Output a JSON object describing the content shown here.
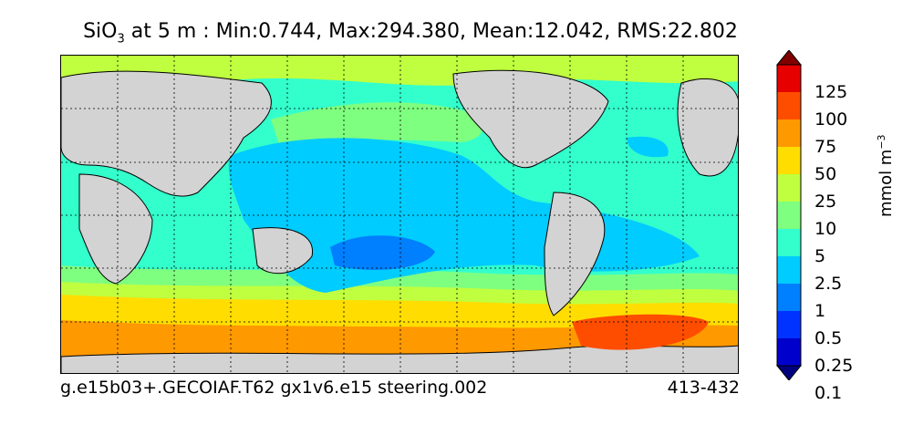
{
  "title": {
    "species": "SiO",
    "species_sub": "3",
    "rest": " at 5 m : Min:0.744, Max:294.380, Mean:12.042, RMS:22.802"
  },
  "footer": {
    "case": "g.e15b03+.GECOIAF.T62 gx1v6.e15 steering.002",
    "years": "413-432"
  },
  "colorbar": {
    "units_main": "mmol m",
    "units_sup": "−3",
    "levels": [
      "125",
      "100",
      "75",
      "50",
      "25",
      "10",
      "5",
      "2.5",
      "1",
      "0.5",
      "0.25",
      "0.1"
    ],
    "colors": [
      "#00007f",
      "#0000cc",
      "#0033ff",
      "#007fff",
      "#00ccff",
      "#33ffcc",
      "#7fff7f",
      "#bfff3f",
      "#ffdd00",
      "#ff9900",
      "#ff4d00",
      "#e60000",
      "#800000"
    ]
  },
  "map": {
    "land_color": "#d3d3d3",
    "grid": "dotted"
  }
}
